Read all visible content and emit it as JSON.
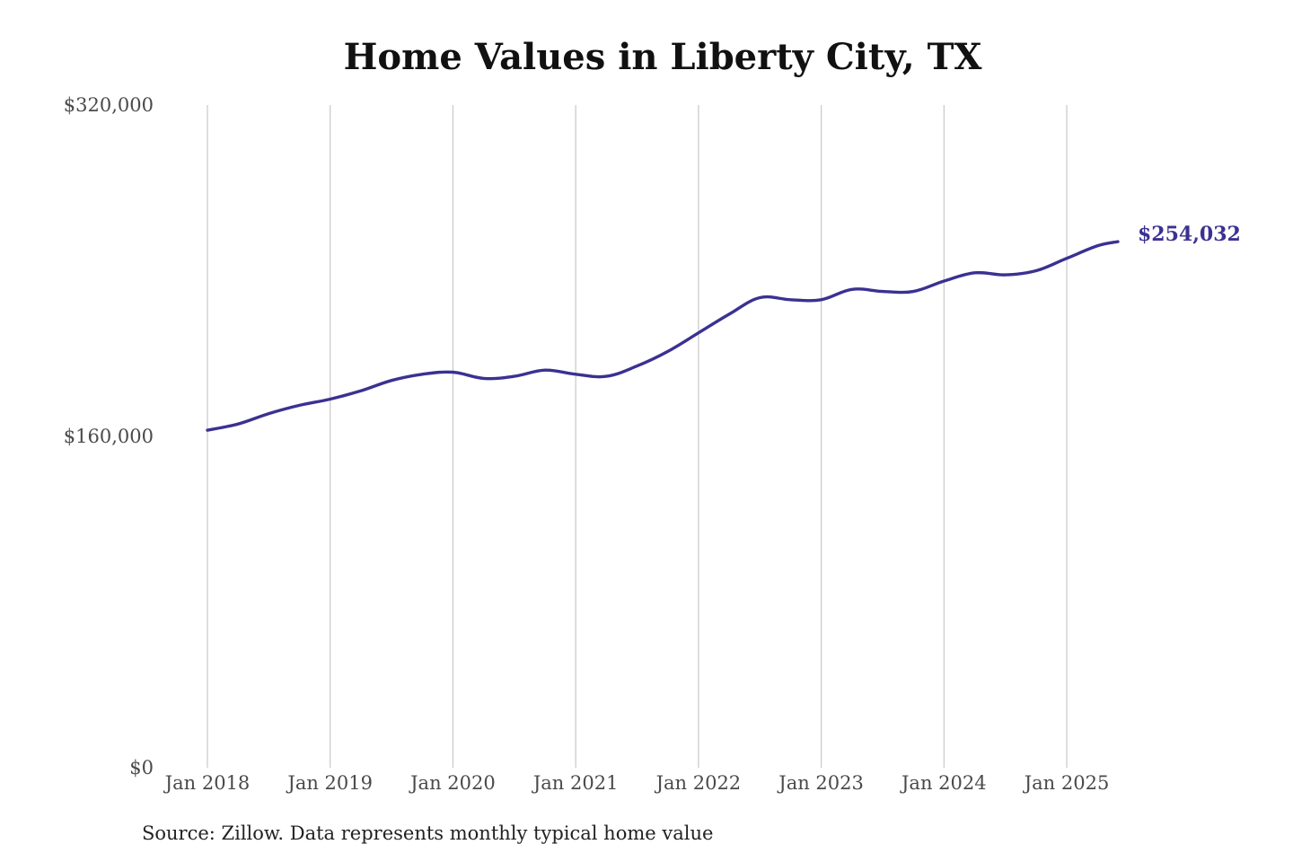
{
  "chart_data": {
    "type": "line",
    "title": "Home Values in Liberty City, TX",
    "xlabel": "",
    "ylabel": "",
    "source": "Source: Zillow. Data represents monthly typical home value",
    "x_ticks": [
      "Jan 2018",
      "Jan 2019",
      "Jan 2020",
      "Jan 2021",
      "Jan 2022",
      "Jan 2023",
      "Jan 2024",
      "Jan 2025"
    ],
    "y_ticks": [
      {
        "value": 0,
        "label": "$0"
      },
      {
        "value": 160000,
        "label": "$160,000"
      },
      {
        "value": 320000,
        "label": "$320,000"
      }
    ],
    "ylim": [
      0,
      320000
    ],
    "xlim": [
      "2018-01",
      "2025-06"
    ],
    "grid": {
      "vertical": true,
      "horizontal": false
    },
    "end_label": "$254,032",
    "series": [
      {
        "color": "#3a3192",
        "x": [
          "2018-01",
          "2018-04",
          "2018-07",
          "2018-10",
          "2019-01",
          "2019-04",
          "2019-07",
          "2019-10",
          "2020-01",
          "2020-04",
          "2020-07",
          "2020-10",
          "2021-01",
          "2021-04",
          "2021-07",
          "2021-10",
          "2022-01",
          "2022-04",
          "2022-07",
          "2022-10",
          "2023-01",
          "2023-04",
          "2023-07",
          "2023-10",
          "2024-01",
          "2024-04",
          "2024-07",
          "2024-10",
          "2025-01",
          "2025-04",
          "2025-06"
        ],
        "values": [
          163000,
          166000,
          171000,
          175000,
          178000,
          182000,
          187000,
          190000,
          191000,
          188000,
          189000,
          192000,
          190000,
          189000,
          194000,
          201000,
          210000,
          219000,
          227000,
          226000,
          226000,
          231000,
          230000,
          230000,
          235000,
          239000,
          238000,
          240000,
          246000,
          252000,
          254032
        ]
      }
    ]
  }
}
